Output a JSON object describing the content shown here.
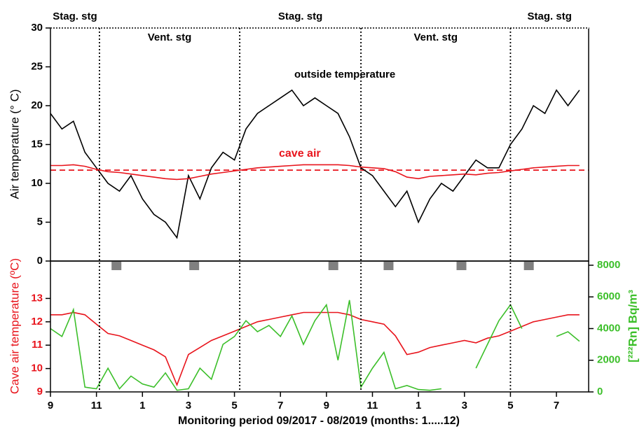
{
  "chart_data": [
    {
      "type": "line",
      "ylabel": "Air temperature (° C)",
      "x": [
        0,
        0.5,
        1,
        1.5,
        2,
        2.5,
        3,
        3.5,
        4,
        4.5,
        5,
        5.5,
        6,
        6.5,
        7,
        7.5,
        8,
        8.5,
        9,
        9.5,
        10,
        10.5,
        11,
        11.5,
        12,
        12.5,
        13,
        13.5,
        14,
        14.5,
        15,
        15.5,
        16,
        16.5,
        17,
        17.5,
        18,
        18.5,
        19,
        19.5,
        20,
        20.5,
        21,
        21.5,
        22,
        22.5,
        23
      ],
      "xlim": [
        0,
        23.4
      ],
      "ylim": [
        0,
        30
      ],
      "yticks": [
        0,
        5,
        10,
        15,
        20,
        25,
        30
      ],
      "series": [
        {
          "color": "#000000",
          "values": [
            19,
            17,
            18,
            14,
            12,
            10,
            9,
            11,
            8,
            6,
            5,
            3,
            11,
            8,
            12,
            14,
            13,
            17,
            19,
            20,
            21,
            22,
            20,
            21,
            20,
            19,
            16,
            12,
            11,
            9,
            7,
            9,
            5,
            8,
            10,
            9,
            11,
            13,
            12,
            12,
            15,
            17,
            20,
            19,
            22,
            20,
            22
          ]
        },
        {
          "color": "#e8141c",
          "values": [
            12.3,
            12.3,
            12.4,
            12.2,
            11.8,
            11.5,
            11.4,
            11.2,
            11,
            10.8,
            10.6,
            10.5,
            10.6,
            10.9,
            11.2,
            11.4,
            11.6,
            11.8,
            12,
            12.1,
            12.2,
            12.3,
            12.4,
            12.4,
            12.4,
            12.4,
            12.3,
            12.1,
            12,
            11.9,
            11.5,
            10.8,
            10.6,
            10.9,
            11,
            11.1,
            11.2,
            11.1,
            11.3,
            11.4,
            11.6,
            11.8,
            12,
            12.1,
            12.2,
            12.3,
            12.3
          ]
        }
      ],
      "reference_line": 11.7,
      "reference_color": "#e8141c",
      "annotations": [
        "outside temperature",
        "cave air"
      ],
      "stages": [
        "Stag. stg",
        "Vent. stg",
        "Stag. stg",
        "Vent. stg",
        "Stag. stg"
      ],
      "stage_boundaries": [
        2.13,
        8.23,
        13.5,
        20.0
      ],
      "markers_x": [
        2.87,
        6.25,
        12.3,
        14.7,
        17.87,
        20.8
      ],
      "marker_color": "#808080"
    },
    {
      "type": "line",
      "xlabel": "Monitoring period 09/2017 - 08/2019 (months: 1.....12)",
      "ylabel": "Cave air temperature (ºC)",
      "y2label": "[²²²Rn] Bq/m³",
      "x": [
        0,
        0.5,
        1,
        1.5,
        2,
        2.5,
        3,
        3.5,
        4,
        4.5,
        5,
        5.5,
        6,
        6.5,
        7,
        7.5,
        8,
        8.5,
        9,
        9.5,
        10,
        10.5,
        11,
        11.5,
        12,
        12.5,
        13,
        13.5,
        14,
        14.5,
        15,
        15.5,
        16,
        16.5,
        17,
        17.5,
        18,
        18.5,
        19,
        19.5,
        20,
        20.5,
        21,
        21.5,
        22,
        22.5,
        23
      ],
      "xlim": [
        0,
        23.4
      ],
      "xticks": [
        {
          "value": 0,
          "label": "9"
        },
        {
          "value": 2,
          "label": "11"
        },
        {
          "value": 4,
          "label": "1"
        },
        {
          "value": 6,
          "label": "3"
        },
        {
          "value": 8,
          "label": "5"
        },
        {
          "value": 10,
          "label": "7"
        },
        {
          "value": 12,
          "label": "9"
        },
        {
          "value": 14,
          "label": "11"
        },
        {
          "value": 16,
          "label": "1"
        },
        {
          "value": 18,
          "label": "3"
        },
        {
          "value": 20,
          "label": "5"
        },
        {
          "value": 22,
          "label": "7"
        }
      ],
      "ylim": [
        9,
        14.6
      ],
      "yticks": [
        9,
        10,
        11,
        12,
        13
      ],
      "y2lim": [
        0,
        8265
      ],
      "y2ticks": [
        0,
        2000,
        4000,
        6000,
        8000
      ],
      "ycolor": "#e8141c",
      "y2color": "#3cbf2a",
      "series": [
        {
          "color": "#e8141c",
          "values": [
            12.3,
            12.3,
            12.4,
            12.3,
            11.9,
            11.5,
            11.4,
            11.2,
            11,
            10.8,
            10.5,
            9.3,
            10.6,
            10.9,
            11.2,
            11.4,
            11.6,
            11.8,
            12,
            12.1,
            12.2,
            12.3,
            12.4,
            12.4,
            12.4,
            12.4,
            12.3,
            12.1,
            12,
            11.9,
            11.4,
            10.6,
            10.7,
            10.9,
            11,
            11.1,
            11.2,
            11.1,
            11.3,
            11.4,
            11.6,
            11.8,
            12,
            12.1,
            12.2,
            12.3,
            12.3
          ]
        },
        {
          "color": "#3cbf2a",
          "axis": "y2",
          "values": [
            4000,
            3500,
            5200,
            300,
            200,
            1500,
            200,
            1000,
            500,
            300,
            1200,
            100,
            200,
            1500,
            800,
            3000,
            3500,
            4500,
            3800,
            4200,
            3500,
            4800,
            3000,
            4500,
            5500,
            2000,
            5800,
            300,
            1500,
            2500,
            200,
            400,
            150,
            100,
            200,
            null,
            null,
            1500,
            3000,
            4500,
            5500,
            4000,
            null,
            null,
            3500,
            3800,
            3200
          ]
        }
      ]
    }
  ]
}
